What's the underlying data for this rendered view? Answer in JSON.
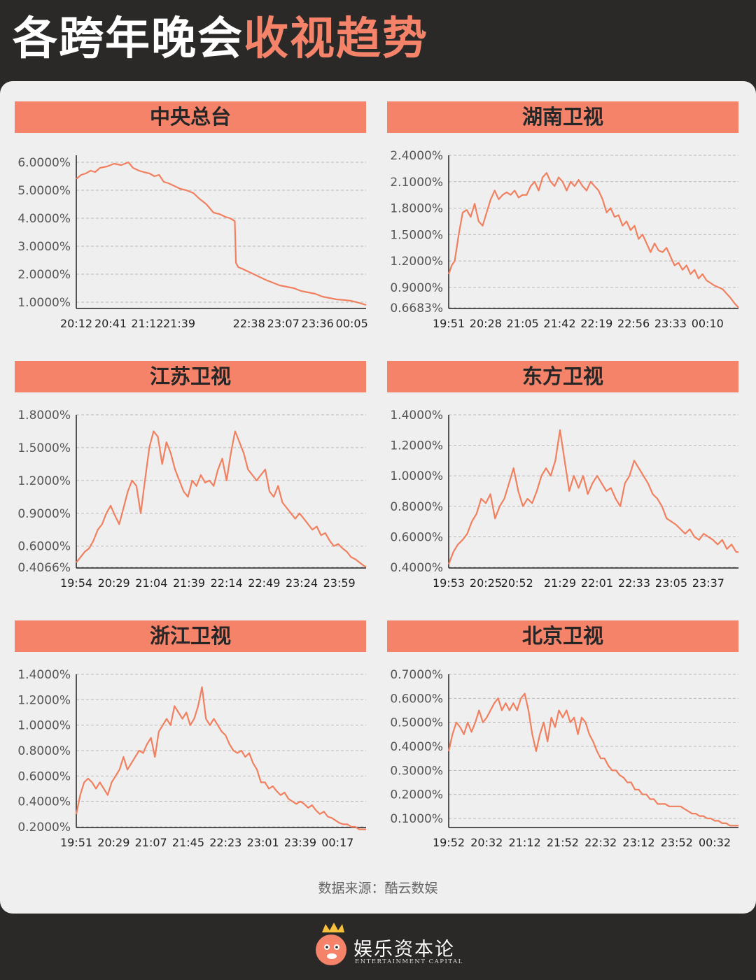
{
  "header": {
    "title_part1": "各跨年晚会",
    "title_part2": "收视趋势"
  },
  "source": "数据来源：酷云数娱",
  "footer": {
    "brand_name": "娱乐资本论",
    "brand_sub": "ENTERTAINMENT CAPITAL"
  },
  "colors": {
    "accent": "#f4836a",
    "line": "#f0805f",
    "background": "#2b2928",
    "card": "#efefef"
  },
  "chart_data": [
    {
      "type": "line",
      "title": "中央总台",
      "yticks": [
        "6.0000%",
        "5.0000%",
        "4.0000%",
        "3.0000%",
        "2.0000%",
        "1.0000%"
      ],
      "ytick_values": [
        6,
        5,
        4,
        3,
        2,
        1
      ],
      "ylim": [
        0.8,
        6.25
      ],
      "xticks": [
        "20:12",
        "20:41",
        "21:12",
        "21:39",
        "22:38",
        "23:07",
        "23:36",
        "00:05"
      ],
      "x_index": [
        0,
        29,
        60,
        87,
        146,
        175,
        204,
        233
      ],
      "x_range": [
        0,
        245
      ],
      "series": [
        {
          "x": [
            0,
            4,
            8,
            12,
            16,
            20,
            26,
            32,
            38,
            44,
            48,
            53,
            57,
            62,
            66,
            70,
            74,
            78,
            83,
            88,
            93,
            99,
            104,
            110,
            116,
            121,
            126,
            130,
            134,
            135,
            137,
            140,
            145,
            150,
            155,
            160,
            166,
            172,
            178,
            184,
            190,
            196,
            202,
            208,
            214,
            220,
            226,
            232,
            237,
            241,
            245
          ],
          "y": [
            5.4,
            5.55,
            5.6,
            5.7,
            5.65,
            5.8,
            5.85,
            5.95,
            5.9,
            6.0,
            5.8,
            5.7,
            5.65,
            5.6,
            5.5,
            5.55,
            5.3,
            5.25,
            5.15,
            5.05,
            5.0,
            4.9,
            4.7,
            4.5,
            4.2,
            4.15,
            4.05,
            4.0,
            3.9,
            2.4,
            2.25,
            2.2,
            2.1,
            2.0,
            1.9,
            1.8,
            1.7,
            1.6,
            1.55,
            1.5,
            1.4,
            1.35,
            1.3,
            1.2,
            1.15,
            1.1,
            1.08,
            1.05,
            1.0,
            0.95,
            0.9
          ]
        }
      ]
    },
    {
      "type": "line",
      "title": "湖南卫视",
      "yticks": [
        "2.4000%",
        "2.1000%",
        "1.8000%",
        "1.5000%",
        "1.2000%",
        "0.9000%",
        "0.6683%"
      ],
      "ytick_values": [
        2.4,
        2.1,
        1.8,
        1.5,
        1.2,
        0.9,
        0.6683
      ],
      "ylim": [
        0.6683,
        2.4
      ],
      "xticks": [
        "19:51",
        "20:28",
        "21:05",
        "21:42",
        "22:19",
        "22:56",
        "23:33",
        "00:10"
      ],
      "x_index": [
        0,
        37,
        74,
        111,
        148,
        185,
        222,
        259
      ],
      "x_range": [
        0,
        290
      ],
      "series": [
        {
          "x": [
            0,
            3,
            6,
            10,
            14,
            18,
            22,
            26,
            30,
            34,
            38,
            42,
            46,
            50,
            54,
            58,
            62,
            66,
            70,
            74,
            78,
            82,
            86,
            90,
            94,
            98,
            102,
            106,
            110,
            114,
            118,
            122,
            126,
            130,
            134,
            138,
            142,
            146,
            150,
            154,
            158,
            162,
            166,
            170,
            174,
            178,
            182,
            186,
            190,
            194,
            198,
            202,
            206,
            210,
            214,
            218,
            222,
            226,
            230,
            234,
            238,
            242,
            246,
            250,
            254,
            258,
            262,
            266,
            270,
            274,
            278,
            282,
            286,
            290
          ],
          "y": [
            1.05,
            1.15,
            1.2,
            1.5,
            1.75,
            1.78,
            1.7,
            1.85,
            1.65,
            1.6,
            1.75,
            1.9,
            2.0,
            1.9,
            1.95,
            1.98,
            1.95,
            2.0,
            1.92,
            1.95,
            1.95,
            2.05,
            2.1,
            2.0,
            2.15,
            2.2,
            2.1,
            2.05,
            2.15,
            2.1,
            2.0,
            2.1,
            2.05,
            2.12,
            2.05,
            2.0,
            2.1,
            2.05,
            2.0,
            1.9,
            1.75,
            1.8,
            1.7,
            1.72,
            1.6,
            1.65,
            1.55,
            1.6,
            1.45,
            1.5,
            1.4,
            1.3,
            1.4,
            1.32,
            1.3,
            1.35,
            1.25,
            1.15,
            1.18,
            1.1,
            1.15,
            1.05,
            1.1,
            1.0,
            1.05,
            0.98,
            0.95,
            0.92,
            0.9,
            0.88,
            0.83,
            0.78,
            0.72,
            0.67
          ]
        }
      ]
    },
    {
      "type": "line",
      "title": "江苏卫视",
      "yticks": [
        "1.8000%",
        "1.5000%",
        "1.2000%",
        "0.9000%",
        "0.6000%",
        "0.4066%"
      ],
      "ytick_values": [
        1.8,
        1.5,
        1.2,
        0.9,
        0.6,
        0.4066
      ],
      "ylim": [
        0.4066,
        1.8
      ],
      "xticks": [
        "19:54",
        "20:29",
        "21:04",
        "21:39",
        "22:14",
        "22:49",
        "23:24",
        "23:59"
      ],
      "x_index": [
        0,
        35,
        70,
        105,
        140,
        175,
        210,
        245
      ],
      "x_range": [
        0,
        270
      ],
      "series": [
        {
          "x": [
            0,
            4,
            8,
            12,
            16,
            20,
            24,
            28,
            32,
            36,
            40,
            44,
            48,
            52,
            56,
            60,
            64,
            68,
            72,
            76,
            80,
            84,
            88,
            92,
            96,
            100,
            104,
            108,
            112,
            116,
            120,
            124,
            128,
            132,
            136,
            140,
            144,
            148,
            152,
            156,
            160,
            164,
            168,
            172,
            176,
            180,
            184,
            188,
            192,
            196,
            200,
            204,
            208,
            212,
            216,
            220,
            224,
            228,
            232,
            236,
            240,
            244,
            248,
            252,
            256,
            260,
            264,
            268,
            270
          ],
          "y": [
            0.45,
            0.5,
            0.55,
            0.58,
            0.65,
            0.75,
            0.8,
            0.9,
            0.97,
            0.88,
            0.8,
            0.95,
            1.1,
            1.2,
            1.15,
            0.9,
            1.2,
            1.5,
            1.65,
            1.6,
            1.35,
            1.55,
            1.45,
            1.3,
            1.2,
            1.1,
            1.05,
            1.2,
            1.15,
            1.25,
            1.18,
            1.2,
            1.15,
            1.3,
            1.4,
            1.2,
            1.45,
            1.65,
            1.55,
            1.45,
            1.3,
            1.25,
            1.2,
            1.25,
            1.3,
            1.1,
            1.05,
            1.15,
            1.0,
            0.95,
            0.9,
            0.85,
            0.9,
            0.85,
            0.8,
            0.75,
            0.78,
            0.7,
            0.72,
            0.65,
            0.6,
            0.62,
            0.58,
            0.55,
            0.5,
            0.48,
            0.45,
            0.42,
            0.41
          ]
        }
      ]
    },
    {
      "type": "line",
      "title": "东方卫视",
      "yticks": [
        "1.4000%",
        "1.2000%",
        "1.0000%",
        "0.8000%",
        "0.6000%",
        "0.4000%"
      ],
      "ytick_values": [
        1.4,
        1.2,
        1.0,
        0.8,
        0.6,
        0.4
      ],
      "ylim": [
        0.4,
        1.4
      ],
      "xticks": [
        "19:53",
        "20:25",
        "20:52",
        "21:29",
        "22:01",
        "22:33",
        "23:05",
        "23:37"
      ],
      "x_index": [
        0,
        32,
        59,
        96,
        128,
        160,
        192,
        224
      ],
      "x_range": [
        0,
        250
      ],
      "series": [
        {
          "x": [
            0,
            4,
            8,
            12,
            16,
            20,
            24,
            28,
            32,
            36,
            40,
            44,
            48,
            52,
            56,
            60,
            64,
            68,
            72,
            76,
            80,
            84,
            88,
            92,
            96,
            100,
            104,
            108,
            112,
            116,
            120,
            124,
            128,
            132,
            136,
            140,
            144,
            148,
            152,
            156,
            160,
            164,
            168,
            172,
            176,
            180,
            184,
            188,
            192,
            196,
            200,
            204,
            208,
            212,
            216,
            220,
            224,
            228,
            232,
            236,
            240,
            244,
            248,
            250
          ],
          "y": [
            0.42,
            0.5,
            0.55,
            0.58,
            0.62,
            0.7,
            0.75,
            0.85,
            0.82,
            0.88,
            0.72,
            0.8,
            0.85,
            0.95,
            1.05,
            0.9,
            0.8,
            0.85,
            0.82,
            0.9,
            1.0,
            1.05,
            1.0,
            1.1,
            1.3,
            1.1,
            0.9,
            1.0,
            0.92,
            1.0,
            0.88,
            0.95,
            1.0,
            0.95,
            0.9,
            0.92,
            0.85,
            0.8,
            0.95,
            1.0,
            1.1,
            1.05,
            1.0,
            0.95,
            0.88,
            0.85,
            0.8,
            0.72,
            0.7,
            0.68,
            0.65,
            0.62,
            0.65,
            0.6,
            0.58,
            0.62,
            0.6,
            0.58,
            0.55,
            0.58,
            0.52,
            0.55,
            0.5,
            0.5
          ]
        }
      ]
    },
    {
      "type": "line",
      "title": "浙江卫视",
      "yticks": [
        "1.4000%",
        "1.2000%",
        "1.0000%",
        "0.8000%",
        "0.6000%",
        "0.4000%",
        "0.2000%"
      ],
      "ytick_values": [
        1.4,
        1.2,
        1.0,
        0.8,
        0.6,
        0.4,
        0.2
      ],
      "ylim": [
        0.2,
        1.4
      ],
      "xticks": [
        "19:51",
        "20:29",
        "21:07",
        "21:45",
        "22:23",
        "23:01",
        "23:39",
        "00:17"
      ],
      "x_index": [
        0,
        38,
        76,
        114,
        152,
        190,
        228,
        266
      ],
      "x_range": [
        0,
        295
      ],
      "series": [
        {
          "x": [
            0,
            4,
            8,
            12,
            16,
            20,
            24,
            28,
            32,
            36,
            40,
            44,
            48,
            52,
            56,
            60,
            64,
            68,
            72,
            76,
            80,
            84,
            88,
            92,
            96,
            100,
            104,
            108,
            112,
            116,
            120,
            124,
            128,
            132,
            136,
            140,
            144,
            148,
            152,
            156,
            160,
            164,
            168,
            172,
            176,
            180,
            184,
            188,
            192,
            196,
            200,
            204,
            208,
            212,
            216,
            220,
            224,
            228,
            232,
            236,
            240,
            244,
            248,
            252,
            256,
            260,
            264,
            268,
            272,
            276,
            280,
            284,
            288,
            292,
            295
          ],
          "y": [
            0.3,
            0.45,
            0.55,
            0.58,
            0.55,
            0.5,
            0.55,
            0.5,
            0.45,
            0.55,
            0.6,
            0.65,
            0.75,
            0.65,
            0.7,
            0.75,
            0.8,
            0.78,
            0.85,
            0.9,
            0.75,
            0.95,
            1.0,
            1.05,
            1.0,
            1.15,
            1.1,
            1.05,
            1.1,
            1.0,
            1.05,
            1.15,
            1.3,
            1.05,
            1.0,
            1.05,
            1.0,
            0.95,
            0.92,
            0.85,
            0.8,
            0.78,
            0.8,
            0.75,
            0.78,
            0.7,
            0.65,
            0.55,
            0.55,
            0.5,
            0.52,
            0.48,
            0.45,
            0.47,
            0.42,
            0.4,
            0.38,
            0.4,
            0.38,
            0.35,
            0.37,
            0.33,
            0.3,
            0.32,
            0.28,
            0.27,
            0.25,
            0.23,
            0.22,
            0.22,
            0.2,
            0.2,
            0.18,
            0.18,
            0.18
          ]
        }
      ]
    },
    {
      "type": "line",
      "title": "北京卫视",
      "yticks": [
        "0.7000%",
        "0.6000%",
        "0.5000%",
        "0.4000%",
        "0.3000%",
        "0.2000%",
        "0.1000%"
      ],
      "ytick_values": [
        0.7,
        0.6,
        0.5,
        0.4,
        0.3,
        0.2,
        0.1
      ],
      "ylim": [
        0.065,
        0.7
      ],
      "xticks": [
        "19:52",
        "20:32",
        "21:12",
        "21:52",
        "22:32",
        "23:12",
        "23:52",
        "00:32"
      ],
      "x_index": [
        0,
        40,
        80,
        120,
        160,
        200,
        240,
        280
      ],
      "x_range": [
        0,
        305
      ],
      "series": [
        {
          "x": [
            0,
            4,
            8,
            12,
            16,
            20,
            24,
            28,
            32,
            36,
            40,
            44,
            48,
            52,
            56,
            60,
            64,
            68,
            72,
            76,
            80,
            84,
            88,
            92,
            96,
            100,
            104,
            108,
            112,
            116,
            120,
            124,
            128,
            132,
            136,
            140,
            144,
            148,
            152,
            156,
            160,
            164,
            168,
            172,
            176,
            180,
            184,
            188,
            192,
            196,
            200,
            204,
            208,
            212,
            216,
            220,
            224,
            228,
            232,
            236,
            240,
            244,
            248,
            252,
            256,
            260,
            264,
            268,
            272,
            276,
            280,
            284,
            288,
            292,
            296,
            300,
            305
          ],
          "y": [
            0.38,
            0.45,
            0.5,
            0.48,
            0.45,
            0.5,
            0.46,
            0.5,
            0.55,
            0.5,
            0.52,
            0.55,
            0.58,
            0.6,
            0.55,
            0.58,
            0.55,
            0.58,
            0.55,
            0.6,
            0.62,
            0.55,
            0.45,
            0.38,
            0.45,
            0.5,
            0.42,
            0.52,
            0.48,
            0.55,
            0.52,
            0.55,
            0.5,
            0.52,
            0.45,
            0.52,
            0.5,
            0.45,
            0.42,
            0.38,
            0.35,
            0.35,
            0.32,
            0.3,
            0.3,
            0.28,
            0.27,
            0.25,
            0.25,
            0.22,
            0.22,
            0.2,
            0.2,
            0.18,
            0.18,
            0.16,
            0.16,
            0.16,
            0.15,
            0.15,
            0.15,
            0.15,
            0.14,
            0.13,
            0.12,
            0.12,
            0.11,
            0.11,
            0.1,
            0.1,
            0.09,
            0.09,
            0.08,
            0.08,
            0.07,
            0.07,
            0.07
          ]
        }
      ]
    }
  ]
}
